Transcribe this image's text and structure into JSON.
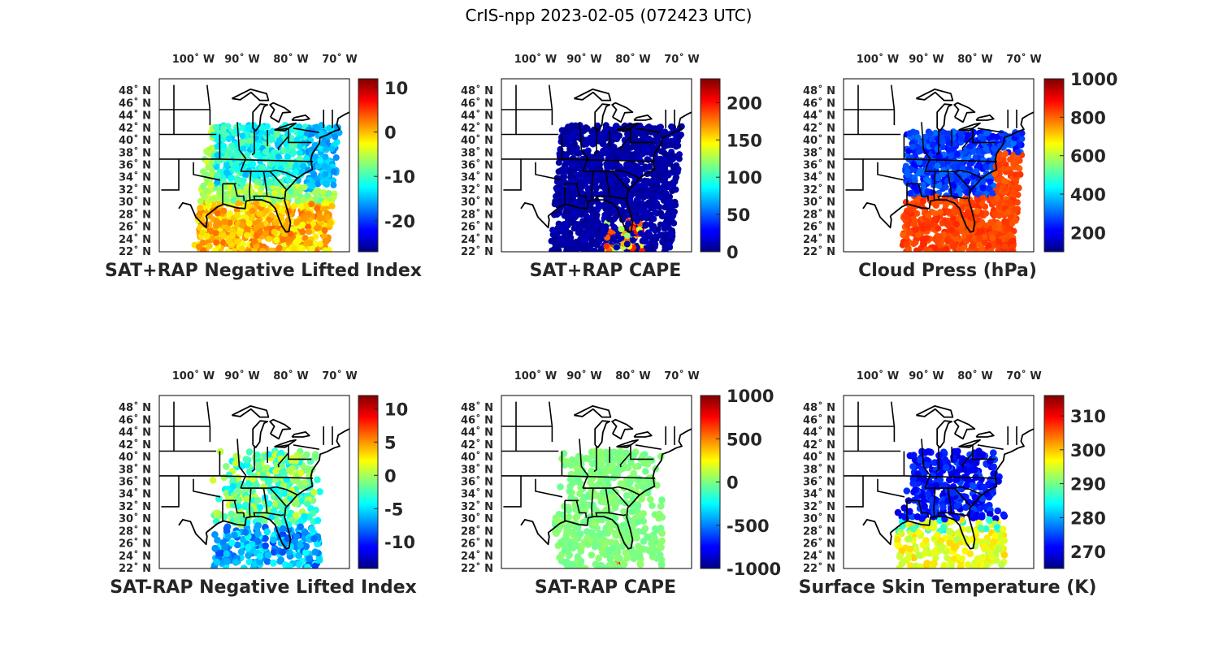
{
  "figure": {
    "title": "CrIS-npp 2023-02-05 (072423 UTC)"
  },
  "map": {
    "lon_ticks": [
      "100˚ W",
      "90˚ W",
      "80˚ W",
      "70˚ W"
    ],
    "lon_values": [
      100,
      90,
      80,
      70
    ],
    "lat_ticks": [
      "48˚ N",
      "46˚ N",
      "44˚ N",
      "42˚ N",
      "40˚ N",
      "38˚ N",
      "36˚ N",
      "34˚ N",
      "32˚ N",
      "30˚ N",
      "28˚ N",
      "26˚ N",
      "24˚ N",
      "22˚ N"
    ],
    "lat_values": [
      48,
      46,
      44,
      42,
      40,
      38,
      36,
      34,
      32,
      30,
      28,
      26,
      24,
      22
    ],
    "extent": {
      "lon": [
        -107,
        -68
      ],
      "lat": [
        22,
        50
      ]
    }
  },
  "chart_data": [
    {
      "type": "scatter",
      "id": "p1",
      "title": "SAT+RAP Negative Lifted Index",
      "colorbar": {
        "ticks": [
          "10",
          "0",
          "-10",
          "-20"
        ],
        "tick_values": [
          10,
          0,
          -10,
          -20
        ],
        "range": [
          -27,
          12
        ]
      }
    },
    {
      "type": "scatter",
      "id": "p2",
      "title": "SAT+RAP CAPE",
      "colorbar": {
        "ticks": [
          "200",
          "150",
          "100",
          "50",
          "0"
        ],
        "tick_values": [
          200,
          150,
          100,
          50,
          0
        ],
        "range": [
          0,
          232
        ]
      }
    },
    {
      "type": "scatter",
      "id": "p3",
      "title": "Cloud Press (hPa)",
      "colorbar": {
        "ticks": [
          "1000",
          "800",
          "600",
          "400",
          "200"
        ],
        "tick_values": [
          1000,
          800,
          600,
          400,
          200
        ],
        "range": [
          100,
          1000
        ]
      }
    },
    {
      "type": "scatter",
      "id": "p4",
      "title": "SAT-RAP Negative Lifted Index",
      "colorbar": {
        "ticks": [
          "10",
          "5",
          "0",
          "-5",
          "-10"
        ],
        "tick_values": [
          10,
          5,
          0,
          -5,
          -10
        ],
        "range": [
          -14,
          12
        ]
      }
    },
    {
      "type": "scatter",
      "id": "p5",
      "title": "SAT-RAP CAPE",
      "colorbar": {
        "ticks": [
          "1000",
          "500",
          "0",
          "-500",
          "-1000"
        ],
        "tick_values": [
          1000,
          500,
          0,
          -500,
          -1000
        ],
        "range": [
          -1000,
          1000
        ]
      }
    },
    {
      "type": "scatter",
      "id": "p6",
      "title": "Surface Skin Temperature (K)",
      "colorbar": {
        "ticks": [
          "310",
          "300",
          "290",
          "280",
          "270"
        ],
        "tick_values": [
          310,
          300,
          290,
          280,
          270
        ],
        "range": [
          265,
          316
        ]
      }
    }
  ]
}
